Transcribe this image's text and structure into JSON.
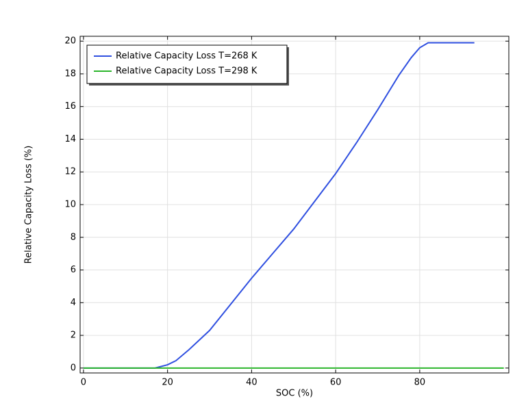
{
  "chart_data": {
    "type": "line",
    "xlabel": "SOC (%)",
    "ylabel": "Relative Capacity Loss (%)",
    "x": [
      0,
      10,
      17,
      20,
      22,
      25,
      30,
      35,
      40,
      45,
      50,
      55,
      60,
      65,
      70,
      75,
      78,
      80,
      82,
      84,
      90,
      93,
      100
    ],
    "series": [
      {
        "name": "Relative Capacity Loss T=268 K",
        "color": "#2f4fe0",
        "values": [
          0,
          0,
          0,
          0.2,
          0.45,
          1.1,
          2.3,
          3.9,
          5.5,
          7.0,
          8.5,
          10.2,
          11.9,
          13.8,
          15.8,
          17.9,
          19.0,
          19.6,
          19.9,
          19.9,
          19.9,
          19.9,
          null
        ]
      },
      {
        "name": "Relative Capacity Loss T=298 K",
        "color": "#2bb52b",
        "values": [
          0,
          0,
          0,
          0,
          0,
          0,
          0,
          0,
          0,
          0,
          0,
          0,
          0,
          0,
          0,
          0,
          0,
          0,
          0,
          0,
          0,
          0,
          0
        ]
      }
    ],
    "xlim": [
      -0.8,
      101.2
    ],
    "ylim": [
      -0.3,
      20.3
    ],
    "xticks": [
      0,
      20,
      40,
      60,
      80
    ],
    "yticks": [
      0,
      2,
      4,
      6,
      8,
      10,
      12,
      14,
      16,
      18,
      20
    ],
    "grid": true,
    "legend": "upper-left"
  }
}
